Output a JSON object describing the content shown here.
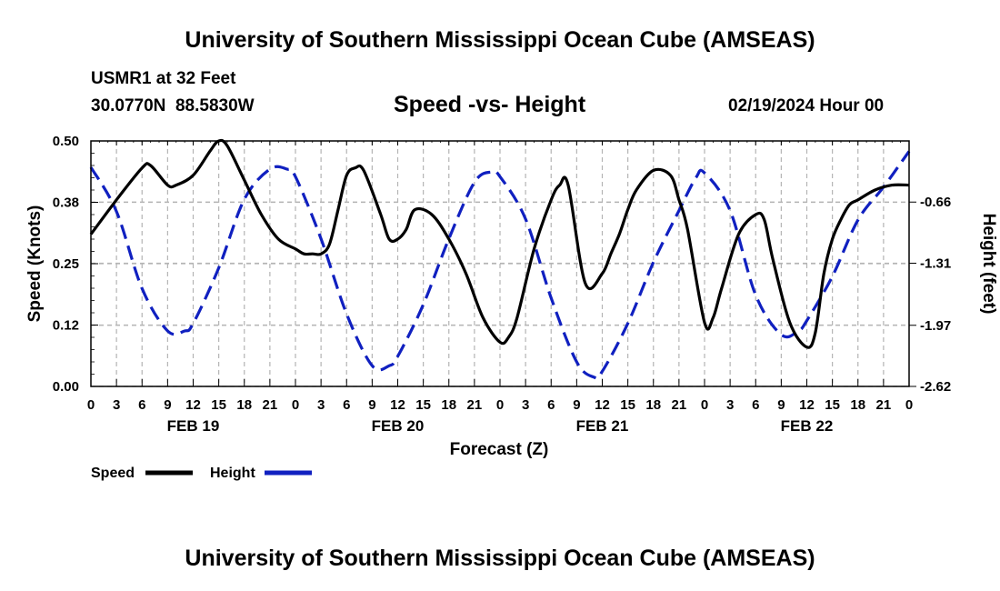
{
  "page": {
    "title_top": "University of Southern Mississippi Ocean Cube (AMSEAS)",
    "title_bottom": "University of Southern Mississippi Ocean Cube (AMSEAS)",
    "station": "USMR1 at 32 Feet",
    "coords": "30.0770N  88.5830W",
    "subtitle": "Speed -vs- Height",
    "date": "02/19/2024 Hour 00"
  },
  "chart_data": {
    "type": "line",
    "title": "Speed -vs- Height",
    "xlabel": "Forecast (Z)",
    "ylabel_left": "Speed (Knots)",
    "ylabel_right": "Height (feet)",
    "xlim": [
      0,
      96
    ],
    "ylim_left": [
      0,
      0.5
    ],
    "ylim_right": [
      -2.62,
      -0.01
    ],
    "y_ticks_left": [
      "0.00",
      "0.12",
      "0.25",
      "0.38",
      "0.50"
    ],
    "y_ticks_right": [
      "-0.66",
      "-1.31",
      "-1.97",
      "-2.62"
    ],
    "x_tick_labels": [
      "0",
      "3",
      "6",
      "9",
      "12",
      "15",
      "18",
      "21",
      "0",
      "3",
      "6",
      "9",
      "12",
      "15",
      "18",
      "21",
      "0",
      "3",
      "6",
      "9",
      "12",
      "15",
      "18",
      "21",
      "0",
      "3",
      "6",
      "9",
      "12",
      "15",
      "18",
      "21",
      "0"
    ],
    "day_labels": [
      {
        "hour": 12,
        "label": "FEB 19"
      },
      {
        "hour": 36,
        "label": "FEB 20"
      },
      {
        "hour": 60,
        "label": "FEB 21"
      },
      {
        "hour": 84,
        "label": "FEB 22"
      }
    ],
    "grid": true,
    "legend": [
      {
        "name": "Speed",
        "color": "#000000",
        "style": "solid"
      },
      {
        "name": "Height",
        "color": "#1020c0",
        "style": "dashed"
      }
    ],
    "series": [
      {
        "name": "Speed",
        "axis": "left",
        "x": [
          0,
          3,
          6,
          7,
          9,
          10,
          12,
          14,
          15,
          16,
          18,
          20,
          22,
          24,
          25,
          26,
          27,
          28,
          29,
          30,
          31,
          32,
          34,
          35,
          36,
          37,
          38,
          40,
          42,
          44,
          46,
          48,
          49,
          50,
          52,
          54,
          55,
          56,
          58,
          60,
          61,
          62,
          63,
          64,
          66,
          68,
          69,
          70,
          72,
          73,
          74,
          76,
          78,
          79,
          80,
          82,
          84,
          85,
          86,
          87,
          88,
          89,
          90,
          92,
          94,
          96
        ],
        "values": [
          0.31,
          0.38,
          0.445,
          0.45,
          0.41,
          0.41,
          0.43,
          0.48,
          0.5,
          0.49,
          0.42,
          0.35,
          0.3,
          0.28,
          0.27,
          0.27,
          0.27,
          0.29,
          0.36,
          0.43,
          0.445,
          0.44,
          0.35,
          0.3,
          0.3,
          0.32,
          0.36,
          0.35,
          0.3,
          0.23,
          0.14,
          0.09,
          0.1,
          0.14,
          0.28,
          0.38,
          0.41,
          0.41,
          0.21,
          0.23,
          0.27,
          0.31,
          0.36,
          0.4,
          0.44,
          0.43,
          0.38,
          0.32,
          0.13,
          0.14,
          0.2,
          0.31,
          0.35,
          0.34,
          0.26,
          0.13,
          0.08,
          0.11,
          0.23,
          0.3,
          0.34,
          0.37,
          0.38,
          0.4,
          0.41,
          0.41
        ]
      },
      {
        "name": "Height",
        "axis": "right",
        "x": [
          0,
          3,
          6,
          9,
          11,
          12,
          15,
          18,
          21,
          23,
          24,
          27,
          30,
          33,
          35,
          36,
          39,
          42,
          45,
          47,
          48,
          51,
          54,
          57,
          59,
          60,
          63,
          66,
          69,
          71,
          72,
          75,
          78,
          81,
          83,
          84,
          87,
          90,
          93,
          96
        ],
        "values": [
          -0.29,
          -0.76,
          -1.58,
          -2.03,
          -2.03,
          -1.95,
          -1.36,
          -0.63,
          -0.31,
          -0.31,
          -0.39,
          -1.05,
          -1.85,
          -2.4,
          -2.4,
          -2.3,
          -1.75,
          -1.05,
          -0.45,
          -0.34,
          -0.39,
          -0.84,
          -1.68,
          -2.36,
          -2.52,
          -2.46,
          -1.95,
          -1.3,
          -0.75,
          -0.4,
          -0.35,
          -0.75,
          -1.65,
          -2.07,
          -2.03,
          -1.92,
          -1.45,
          -0.85,
          -0.5,
          -0.12
        ]
      }
    ]
  }
}
